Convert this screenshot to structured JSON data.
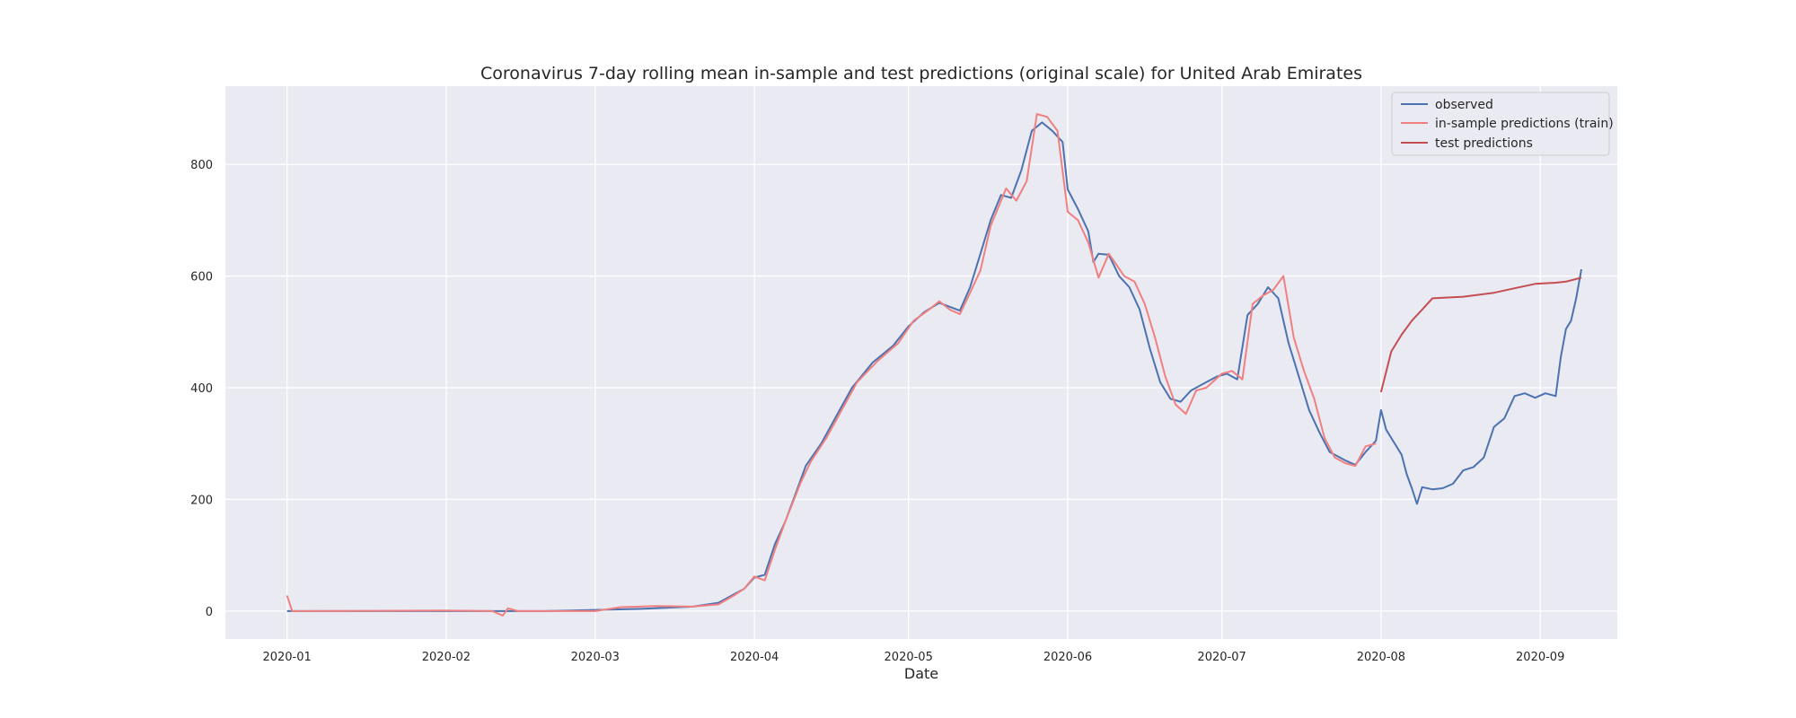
{
  "chart_data": {
    "type": "line",
    "title": "Coronavirus 7-day rolling mean in-sample and test predictions (original scale) for United Arab Emirates",
    "xlabel": "Date",
    "ylabel": "",
    "x_range": [
      "2019-12-20",
      "2020-09-16"
    ],
    "ylim": [
      -50,
      940
    ],
    "x_ticks": [
      "2020-01-01",
      "2020-02-01",
      "2020-03-01",
      "2020-04-01",
      "2020-05-01",
      "2020-06-01",
      "2020-07-01",
      "2020-08-01",
      "2020-09-01"
    ],
    "x_tick_labels": [
      "2020-01",
      "2020-02",
      "2020-03",
      "2020-04",
      "2020-05",
      "2020-06",
      "2020-07",
      "2020-08",
      "2020-09"
    ],
    "y_ticks": [
      0,
      200,
      400,
      600,
      800
    ],
    "y_tick_labels": [
      "0",
      "200",
      "400",
      "600",
      "800"
    ],
    "grid": true,
    "legend_position": "top-right",
    "series": [
      {
        "name": "observed",
        "color": "#4c72b0",
        "points": [
          [
            "2020-01-01",
            0
          ],
          [
            "2020-01-25",
            0
          ],
          [
            "2020-02-20",
            0
          ],
          [
            "2020-03-10",
            4
          ],
          [
            "2020-03-20",
            8
          ],
          [
            "2020-03-25",
            15
          ],
          [
            "2020-03-28",
            30
          ],
          [
            "2020-03-30",
            40
          ],
          [
            "2020-04-01",
            60
          ],
          [
            "2020-04-03",
            65
          ],
          [
            "2020-04-05",
            120
          ],
          [
            "2020-04-07",
            160
          ],
          [
            "2020-04-09",
            210
          ],
          [
            "2020-04-11",
            260
          ],
          [
            "2020-04-14",
            300
          ],
          [
            "2020-04-17",
            350
          ],
          [
            "2020-04-20",
            400
          ],
          [
            "2020-04-24",
            445
          ],
          [
            "2020-04-28",
            475
          ],
          [
            "2020-05-01",
            510
          ],
          [
            "2020-05-04",
            535
          ],
          [
            "2020-05-07",
            552
          ],
          [
            "2020-05-09",
            545
          ],
          [
            "2020-05-11",
            538
          ],
          [
            "2020-05-13",
            580
          ],
          [
            "2020-05-15",
            640
          ],
          [
            "2020-05-17",
            700
          ],
          [
            "2020-05-19",
            745
          ],
          [
            "2020-05-21",
            740
          ],
          [
            "2020-05-23",
            790
          ],
          [
            "2020-05-25",
            860
          ],
          [
            "2020-05-27",
            875
          ],
          [
            "2020-05-29",
            860
          ],
          [
            "2020-05-31",
            840
          ],
          [
            "2020-06-01",
            755
          ],
          [
            "2020-06-03",
            720
          ],
          [
            "2020-06-05",
            680
          ],
          [
            "2020-06-06",
            625
          ],
          [
            "2020-06-07",
            640
          ],
          [
            "2020-06-09",
            638
          ],
          [
            "2020-06-11",
            600
          ],
          [
            "2020-06-13",
            580
          ],
          [
            "2020-06-15",
            540
          ],
          [
            "2020-06-17",
            470
          ],
          [
            "2020-06-19",
            410
          ],
          [
            "2020-06-21",
            380
          ],
          [
            "2020-06-23",
            375
          ],
          [
            "2020-06-25",
            395
          ],
          [
            "2020-06-27",
            405
          ],
          [
            "2020-06-30",
            420
          ],
          [
            "2020-07-02",
            425
          ],
          [
            "2020-07-04",
            415
          ],
          [
            "2020-07-06",
            530
          ],
          [
            "2020-07-08",
            550
          ],
          [
            "2020-07-10",
            580
          ],
          [
            "2020-07-12",
            560
          ],
          [
            "2020-07-14",
            480
          ],
          [
            "2020-07-16",
            420
          ],
          [
            "2020-07-18",
            360
          ],
          [
            "2020-07-20",
            320
          ],
          [
            "2020-07-22",
            285
          ],
          [
            "2020-07-25",
            270
          ],
          [
            "2020-07-27",
            262
          ],
          [
            "2020-07-29",
            285
          ],
          [
            "2020-07-31",
            305
          ],
          [
            "2020-08-01",
            360
          ],
          [
            "2020-08-02",
            325
          ],
          [
            "2020-08-03",
            310
          ],
          [
            "2020-08-05",
            280
          ],
          [
            "2020-08-06",
            245
          ],
          [
            "2020-08-07",
            220
          ],
          [
            "2020-08-08",
            192
          ],
          [
            "2020-08-09",
            222
          ],
          [
            "2020-08-11",
            218
          ],
          [
            "2020-08-13",
            220
          ],
          [
            "2020-08-15",
            228
          ],
          [
            "2020-08-17",
            252
          ],
          [
            "2020-08-19",
            258
          ],
          [
            "2020-08-21",
            275
          ],
          [
            "2020-08-23",
            330
          ],
          [
            "2020-08-25",
            345
          ],
          [
            "2020-08-27",
            385
          ],
          [
            "2020-08-29",
            390
          ],
          [
            "2020-08-31",
            382
          ],
          [
            "2020-09-02",
            390
          ],
          [
            "2020-09-04",
            385
          ],
          [
            "2020-09-05",
            455
          ],
          [
            "2020-09-06",
            505
          ],
          [
            "2020-09-07",
            520
          ],
          [
            "2020-09-08",
            560
          ],
          [
            "2020-09-09",
            612
          ]
        ]
      },
      {
        "name": "in-sample predictions (train)",
        "color": "#f08080",
        "points": [
          [
            "2020-01-01",
            28
          ],
          [
            "2020-01-02",
            0
          ],
          [
            "2020-02-01",
            1
          ],
          [
            "2020-02-10",
            0
          ],
          [
            "2020-02-12",
            -8
          ],
          [
            "2020-02-13",
            5
          ],
          [
            "2020-02-15",
            0
          ],
          [
            "2020-03-01",
            0
          ],
          [
            "2020-03-06",
            7
          ],
          [
            "2020-03-13",
            9
          ],
          [
            "2020-03-20",
            8
          ],
          [
            "2020-03-25",
            12
          ],
          [
            "2020-03-28",
            28
          ],
          [
            "2020-03-30",
            40
          ],
          [
            "2020-04-01",
            62
          ],
          [
            "2020-04-03",
            55
          ],
          [
            "2020-04-05",
            110
          ],
          [
            "2020-04-07",
            160
          ],
          [
            "2020-04-10",
            230
          ],
          [
            "2020-04-12",
            268
          ],
          [
            "2020-04-15",
            310
          ],
          [
            "2020-04-18",
            360
          ],
          [
            "2020-04-21",
            410
          ],
          [
            "2020-04-25",
            448
          ],
          [
            "2020-04-29",
            480
          ],
          [
            "2020-05-02",
            520
          ],
          [
            "2020-05-05",
            540
          ],
          [
            "2020-05-07",
            555
          ],
          [
            "2020-05-09",
            540
          ],
          [
            "2020-05-11",
            532
          ],
          [
            "2020-05-13",
            570
          ],
          [
            "2020-05-15",
            610
          ],
          [
            "2020-05-17",
            690
          ],
          [
            "2020-05-20",
            757
          ],
          [
            "2020-05-22",
            735
          ],
          [
            "2020-05-24",
            770
          ],
          [
            "2020-05-26",
            890
          ],
          [
            "2020-05-28",
            885
          ],
          [
            "2020-05-30",
            860
          ],
          [
            "2020-06-01",
            715
          ],
          [
            "2020-06-03",
            700
          ],
          [
            "2020-06-05",
            660
          ],
          [
            "2020-06-07",
            597
          ],
          [
            "2020-06-09",
            640
          ],
          [
            "2020-06-12",
            600
          ],
          [
            "2020-06-14",
            590
          ],
          [
            "2020-06-16",
            550
          ],
          [
            "2020-06-18",
            490
          ],
          [
            "2020-06-20",
            420
          ],
          [
            "2020-06-22",
            370
          ],
          [
            "2020-06-24",
            353
          ],
          [
            "2020-06-26",
            395
          ],
          [
            "2020-06-28",
            400
          ],
          [
            "2020-07-01",
            425
          ],
          [
            "2020-07-03",
            430
          ],
          [
            "2020-07-05",
            415
          ],
          [
            "2020-07-07",
            550
          ],
          [
            "2020-07-09",
            565
          ],
          [
            "2020-07-11",
            575
          ],
          [
            "2020-07-13",
            600
          ],
          [
            "2020-07-15",
            490
          ],
          [
            "2020-07-17",
            430
          ],
          [
            "2020-07-19",
            380
          ],
          [
            "2020-07-21",
            310
          ],
          [
            "2020-07-23",
            275
          ],
          [
            "2020-07-25",
            265
          ],
          [
            "2020-07-27",
            260
          ],
          [
            "2020-07-29",
            295
          ],
          [
            "2020-07-31",
            300
          ]
        ]
      },
      {
        "name": "test predictions",
        "color": "#c44e52",
        "points": [
          [
            "2020-08-01",
            392
          ],
          [
            "2020-08-03",
            465
          ],
          [
            "2020-08-05",
            495
          ],
          [
            "2020-08-07",
            520
          ],
          [
            "2020-08-09",
            540
          ],
          [
            "2020-08-11",
            560
          ],
          [
            "2020-08-17",
            563
          ],
          [
            "2020-08-23",
            570
          ],
          [
            "2020-08-27",
            578
          ],
          [
            "2020-08-31",
            586
          ],
          [
            "2020-09-04",
            588
          ],
          [
            "2020-09-06",
            590
          ],
          [
            "2020-09-09",
            597
          ]
        ]
      }
    ]
  }
}
